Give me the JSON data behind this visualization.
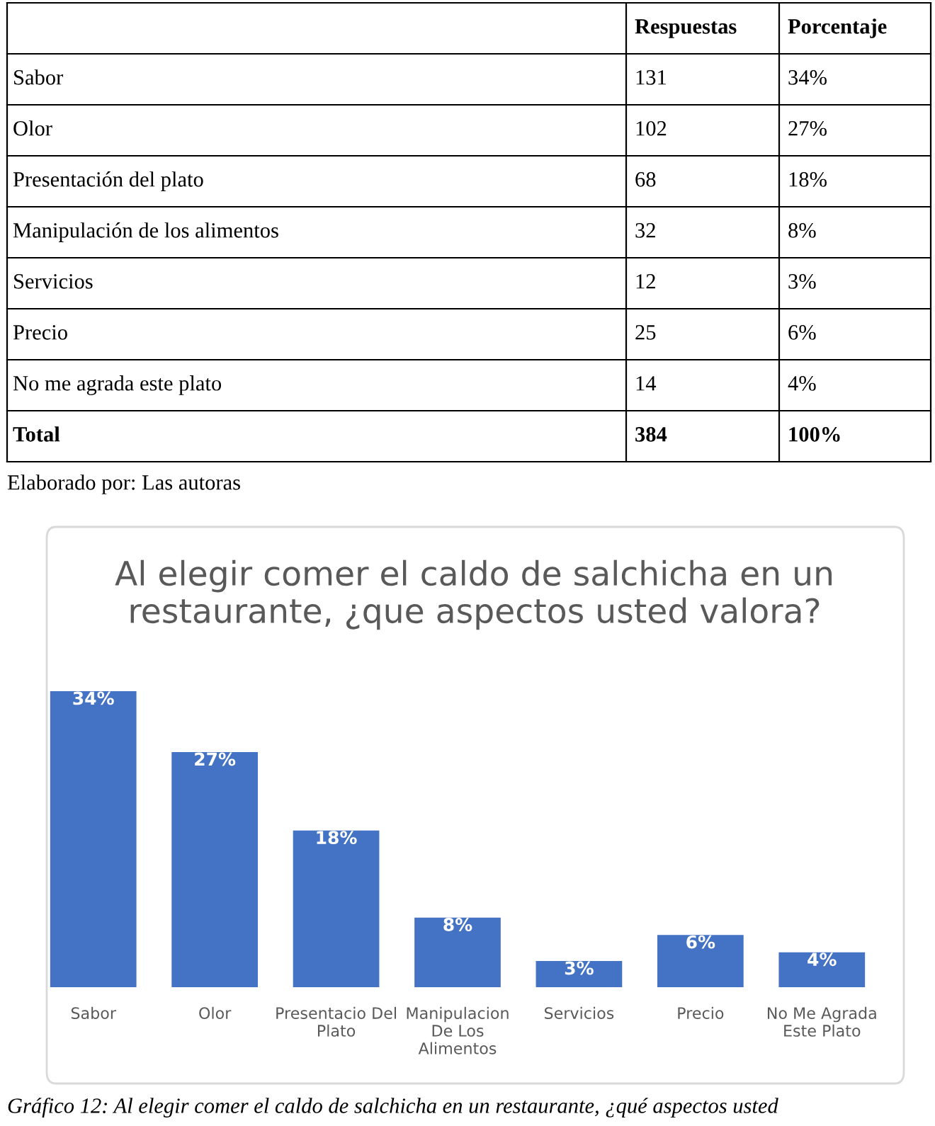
{
  "chart_data": [
    {
      "type": "other",
      "categories": [
        null,
        "Respuestas",
        "Porcentaje"
      ],
      "y_categories": [
        "Sabor",
        "Olor",
        "Presentación del plato",
        "Manipulación de los alimentos",
        "Servicios",
        "Precio",
        "No me agrada este plato",
        "Total"
      ],
      "cell_labels": [
        [
          "131",
          "34%"
        ],
        [
          "102",
          "27%"
        ],
        [
          "68",
          "18%"
        ],
        [
          "32",
          "8%"
        ],
        [
          "12",
          "3%"
        ],
        [
          "25",
          "6%"
        ],
        [
          "14",
          "4%"
        ],
        [
          "384",
          "100%"
        ]
      ],
      "annotations": [
        "Elaborado por: Las autoras"
      ]
    },
    {
      "type": "bar",
      "title": "Al elegir comer el caldo de salchicha en un restaurante, ¿que aspectos usted valora?",
      "categories": [
        "Sabor",
        "Olor",
        "Presentacio Del\nPlato",
        "Manipulacion\nDe Los\nAlimentos",
        "Servicios",
        "Precio",
        "No Me Agrada\nEste Plato"
      ],
      "values": [
        34,
        27,
        18,
        8,
        3,
        6,
        4
      ],
      "value_labels": [
        "34%",
        "27%",
        "18%",
        "8%",
        "3%",
        "6%",
        "4%"
      ],
      "color": "#4472c4",
      "annotations": [
        "Gráfico 12: Al elegir comer el caldo de salchicha en un restaurante, ¿qué aspectos usted"
      ]
    }
  ]
}
